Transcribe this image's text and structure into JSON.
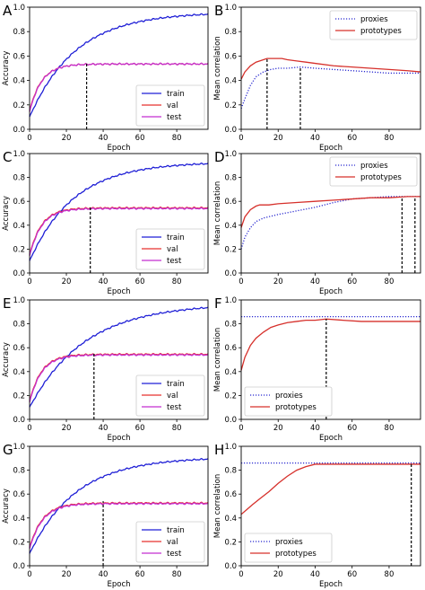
{
  "chart_data": [
    {
      "panel": "A",
      "type": "line",
      "xlabel": "Epoch",
      "ylabel": "Accuracy",
      "xlim": [
        0,
        97
      ],
      "ylim": [
        0.0,
        1.0
      ],
      "xticks": [
        0,
        20,
        40,
        60,
        80
      ],
      "yticks": [
        0.0,
        0.2,
        0.4,
        0.6,
        0.8,
        1.0
      ],
      "legend": {
        "position": "lower-right",
        "entries": [
          "train",
          "val",
          "test"
        ]
      },
      "vline": {
        "x": 31,
        "y_top": 0.54
      },
      "series": [
        {
          "name": "train",
          "color": "#1f1fd6",
          "style": "solid",
          "model": "saturating",
          "start": 0.1,
          "end": 0.96,
          "tau": 25
        },
        {
          "name": "val",
          "color": "#e8322f",
          "style": "solid",
          "model": "saturating",
          "start": 0.15,
          "end": 0.535,
          "tau": 6.5
        },
        {
          "name": "test",
          "color": "#c42fd1",
          "style": "solid",
          "model": "saturating",
          "start": 0.14,
          "end": 0.535,
          "tau": 6.5
        }
      ]
    },
    {
      "panel": "B",
      "type": "line",
      "xlabel": "Epoch",
      "ylabel": "Mean correlation",
      "xlim": [
        0,
        97
      ],
      "ylim": [
        0.0,
        1.0
      ],
      "xticks": [
        0,
        20,
        40,
        60,
        80
      ],
      "yticks": [
        0.0,
        0.2,
        0.4,
        0.6,
        0.8,
        1.0
      ],
      "legend": {
        "position": "top-right",
        "entries": [
          "proxies",
          "prototypes"
        ]
      },
      "vlines": [
        {
          "x": 14,
          "y_top": 0.58
        },
        {
          "x": 32,
          "y_top": 0.51
        }
      ],
      "series": [
        {
          "name": "proxies",
          "color": "#2a2ad0",
          "style": "dotted",
          "x": [
            0,
            2,
            5,
            8,
            12,
            16,
            20,
            25,
            32,
            40,
            50,
            60,
            70,
            80,
            90,
            97
          ],
          "y": [
            0.17,
            0.25,
            0.36,
            0.43,
            0.47,
            0.49,
            0.5,
            0.5,
            0.51,
            0.5,
            0.49,
            0.48,
            0.47,
            0.46,
            0.46,
            0.46
          ]
        },
        {
          "name": "prototypes",
          "color": "#d6302b",
          "style": "solid",
          "x": [
            0,
            2,
            5,
            8,
            10,
            14,
            18,
            22,
            25,
            30,
            35,
            40,
            50,
            60,
            70,
            80,
            90,
            97
          ],
          "y": [
            0.41,
            0.47,
            0.52,
            0.55,
            0.56,
            0.58,
            0.58,
            0.58,
            0.57,
            0.56,
            0.55,
            0.54,
            0.52,
            0.51,
            0.5,
            0.49,
            0.48,
            0.47
          ]
        }
      ]
    },
    {
      "panel": "C",
      "type": "line",
      "xlabel": "Epoch",
      "ylabel": "Accuracy",
      "xlim": [
        0,
        97
      ],
      "ylim": [
        0.0,
        1.0
      ],
      "xticks": [
        0,
        20,
        40,
        60,
        80
      ],
      "yticks": [
        0.0,
        0.2,
        0.4,
        0.6,
        0.8,
        1.0
      ],
      "legend": {
        "position": "lower-right",
        "entries": [
          "train",
          "val",
          "test"
        ]
      },
      "vline": {
        "x": 33,
        "y_top": 0.55
      },
      "series": [
        {
          "name": "train",
          "color": "#1f1fd6",
          "style": "solid",
          "model": "saturating",
          "start": 0.1,
          "end": 0.93,
          "tau": 24
        },
        {
          "name": "val",
          "color": "#e8322f",
          "style": "solid",
          "model": "saturating",
          "start": 0.15,
          "end": 0.545,
          "tau": 6.5
        },
        {
          "name": "test",
          "color": "#c42fd1",
          "style": "solid",
          "model": "saturating",
          "start": 0.14,
          "end": 0.54,
          "tau": 6.5
        }
      ]
    },
    {
      "panel": "D",
      "type": "line",
      "xlabel": "Epoch",
      "ylabel": "Mean correlation",
      "xlim": [
        0,
        97
      ],
      "ylim": [
        0.0,
        1.0
      ],
      "xticks": [
        0,
        20,
        40,
        60,
        80
      ],
      "yticks": [
        0.0,
        0.2,
        0.4,
        0.6,
        0.8,
        1.0
      ],
      "legend": {
        "position": "top-right",
        "entries": [
          "proxies",
          "prototypes"
        ]
      },
      "vlines": [
        {
          "x": 87,
          "y_top": 0.64
        },
        {
          "x": 94,
          "y_top": 0.64
        }
      ],
      "series": [
        {
          "name": "proxies",
          "color": "#2a2ad0",
          "style": "dotted",
          "x": [
            0,
            2,
            5,
            8,
            12,
            20,
            30,
            40,
            50,
            60,
            70,
            80,
            90,
            97
          ],
          "y": [
            0.2,
            0.3,
            0.38,
            0.43,
            0.46,
            0.49,
            0.52,
            0.55,
            0.59,
            0.62,
            0.63,
            0.64,
            0.64,
            0.64
          ]
        },
        {
          "name": "prototypes",
          "color": "#d6302b",
          "style": "solid",
          "x": [
            0,
            2,
            5,
            8,
            10,
            15,
            20,
            30,
            40,
            50,
            60,
            70,
            80,
            90,
            97
          ],
          "y": [
            0.38,
            0.47,
            0.53,
            0.56,
            0.57,
            0.57,
            0.58,
            0.59,
            0.6,
            0.61,
            0.62,
            0.63,
            0.63,
            0.64,
            0.64
          ]
        }
      ]
    },
    {
      "panel": "E",
      "type": "line",
      "xlabel": "Epoch",
      "ylabel": "Accuracy",
      "xlim": [
        0,
        97
      ],
      "ylim": [
        0.0,
        1.0
      ],
      "xticks": [
        0,
        20,
        40,
        60,
        80
      ],
      "yticks": [
        0.0,
        0.2,
        0.4,
        0.6,
        0.8,
        1.0
      ],
      "legend": {
        "position": "lower-right",
        "entries": [
          "train",
          "val",
          "test"
        ]
      },
      "vline": {
        "x": 35,
        "y_top": 0.55
      },
      "series": [
        {
          "name": "train",
          "color": "#1f1fd6",
          "style": "solid",
          "model": "saturating",
          "start": 0.1,
          "end": 0.97,
          "tau": 30
        },
        {
          "name": "val",
          "color": "#e8322f",
          "style": "solid",
          "model": "saturating",
          "start": 0.15,
          "end": 0.545,
          "tau": 6.5
        },
        {
          "name": "test",
          "color": "#c42fd1",
          "style": "solid",
          "model": "saturating",
          "start": 0.14,
          "end": 0.54,
          "tau": 6.5
        }
      ]
    },
    {
      "panel": "F",
      "type": "line",
      "xlabel": "Epoch",
      "ylabel": "Mean correlation",
      "xlim": [
        0,
        97
      ],
      "ylim": [
        0.0,
        1.0
      ],
      "xticks": [
        0,
        20,
        40,
        60,
        80
      ],
      "yticks": [
        0.0,
        0.2,
        0.4,
        0.6,
        0.8,
        1.0
      ],
      "legend": {
        "position": "lower-left",
        "entries": [
          "proxies",
          "prototypes"
        ]
      },
      "vline": {
        "x": 46,
        "y_top": 0.84
      },
      "series": [
        {
          "name": "proxies",
          "color": "#2a2ad0",
          "style": "dotted",
          "x": [
            0,
            97
          ],
          "y": [
            0.86,
            0.86
          ]
        },
        {
          "name": "prototypes",
          "color": "#d6302b",
          "style": "solid",
          "x": [
            0,
            2,
            5,
            8,
            12,
            16,
            20,
            25,
            30,
            35,
            40,
            46,
            55,
            65,
            75,
            85,
            97
          ],
          "y": [
            0.41,
            0.52,
            0.62,
            0.68,
            0.73,
            0.77,
            0.79,
            0.81,
            0.82,
            0.83,
            0.83,
            0.84,
            0.83,
            0.82,
            0.82,
            0.82,
            0.82
          ]
        }
      ]
    },
    {
      "panel": "G",
      "type": "line",
      "xlabel": "Epoch",
      "ylabel": "Accuracy",
      "xlim": [
        0,
        97
      ],
      "ylim": [
        0.0,
        1.0
      ],
      "xticks": [
        0,
        20,
        40,
        60,
        80
      ],
      "yticks": [
        0.0,
        0.2,
        0.4,
        0.6,
        0.8,
        1.0
      ],
      "legend": {
        "position": "lower-right",
        "entries": [
          "train",
          "val",
          "test"
        ]
      },
      "vline": {
        "x": 40,
        "y_top": 0.54
      },
      "series": [
        {
          "name": "train",
          "color": "#1f1fd6",
          "style": "solid",
          "model": "saturating",
          "start": 0.1,
          "end": 0.91,
          "tau": 25
        },
        {
          "name": "val",
          "color": "#e8322f",
          "style": "solid",
          "model": "saturating",
          "start": 0.15,
          "end": 0.525,
          "tau": 7
        },
        {
          "name": "test",
          "color": "#c42fd1",
          "style": "solid",
          "model": "saturating",
          "start": 0.14,
          "end": 0.52,
          "tau": 7
        }
      ]
    },
    {
      "panel": "H",
      "type": "line",
      "xlabel": "Epoch",
      "ylabel": "Mean correlation",
      "xlim": [
        0,
        97
      ],
      "ylim": [
        0.0,
        1.0
      ],
      "xticks": [
        0,
        20,
        40,
        60,
        80
      ],
      "yticks": [
        0.0,
        0.2,
        0.4,
        0.6,
        0.8,
        1.0
      ],
      "legend": {
        "position": "lower-left",
        "entries": [
          "proxies",
          "prototypes"
        ]
      },
      "vline": {
        "x": 92,
        "y_top": 0.85
      },
      "series": [
        {
          "name": "proxies",
          "color": "#2a2ad0",
          "style": "dotted",
          "x": [
            0,
            97
          ],
          "y": [
            0.86,
            0.86
          ]
        },
        {
          "name": "prototypes",
          "color": "#d6302b",
          "style": "solid",
          "x": [
            0,
            3,
            6,
            10,
            15,
            20,
            25,
            30,
            35,
            40,
            50,
            60,
            70,
            80,
            92,
            97
          ],
          "y": [
            0.43,
            0.47,
            0.51,
            0.56,
            0.62,
            0.69,
            0.75,
            0.8,
            0.83,
            0.85,
            0.85,
            0.85,
            0.85,
            0.85,
            0.85,
            0.85
          ]
        }
      ]
    }
  ]
}
